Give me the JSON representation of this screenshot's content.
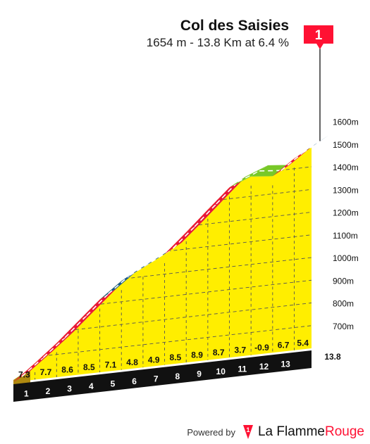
{
  "chart_data": {
    "type": "area",
    "title": "Col des Saisies",
    "subtitle": "1654 m - 13.8 Km at 6.4 %",
    "flag_label": "1",
    "x_unit_label": "13.8",
    "xlim": [
      0,
      13.8
    ],
    "ylim": [
      600,
      1654
    ],
    "y_ticks": [
      {
        "value": 700,
        "label": "700m"
      },
      {
        "value": 800,
        "label": "800m"
      },
      {
        "value": 900,
        "label": "900m"
      },
      {
        "value": 1000,
        "label": "1000m"
      },
      {
        "value": 1100,
        "label": "1100m"
      },
      {
        "value": 1200,
        "label": "1200m"
      },
      {
        "value": 1300,
        "label": "1300m"
      },
      {
        "value": 1400,
        "label": "1400m"
      },
      {
        "value": 1500,
        "label": "1500m"
      },
      {
        "value": 1600,
        "label": "1600m"
      }
    ],
    "km_labels": [
      "1",
      "2",
      "3",
      "4",
      "5",
      "6",
      "7",
      "8",
      "9",
      "10",
      "11",
      "12",
      "13"
    ],
    "segments": [
      {
        "from": 0,
        "to": 1,
        "gradient": "7.3",
        "color": "#e8173a"
      },
      {
        "from": 1,
        "to": 2,
        "gradient": "7.7",
        "color": "#e8173a"
      },
      {
        "from": 2,
        "to": 3,
        "gradient": "8.6",
        "color": "#e8173a"
      },
      {
        "from": 3,
        "to": 4,
        "gradient": "8.5",
        "color": "#e8173a"
      },
      {
        "from": 4,
        "to": 5,
        "gradient": "7.1",
        "color": "#1a5a8a"
      },
      {
        "from": 5,
        "to": 6,
        "gradient": "4.8",
        "color": "#1a5a8a"
      },
      {
        "from": 6,
        "to": 7,
        "gradient": "4.9",
        "color": "#1a5a8a"
      },
      {
        "from": 7,
        "to": 8,
        "gradient": "8.5",
        "color": "#e8173a"
      },
      {
        "from": 8,
        "to": 9,
        "gradient": "8.9",
        "color": "#e8173a"
      },
      {
        "from": 9,
        "to": 10,
        "gradient": "8.7",
        "color": "#e8173a"
      },
      {
        "from": 10,
        "to": 11,
        "gradient": "3.7",
        "color": "#78c828"
      },
      {
        "from": 11,
        "to": 12,
        "gradient": "-0.9",
        "color": "#78c828"
      },
      {
        "from": 12,
        "to": 13,
        "gradient": "6.7",
        "color": "#e8173a"
      },
      {
        "from": 13,
        "to": 13.8,
        "gradient": "5.4",
        "color": "#1a5a8a"
      }
    ],
    "colors": {
      "fill": "#ffee00",
      "side": "#b08a10",
      "base": "#111111",
      "grid": "#555555",
      "flag": "#ff1133"
    }
  },
  "footer": {
    "powered_by": "Powered by",
    "brand_part1": "La Flamme",
    "brand_part2": "Rouge",
    "logo_label": "1"
  }
}
